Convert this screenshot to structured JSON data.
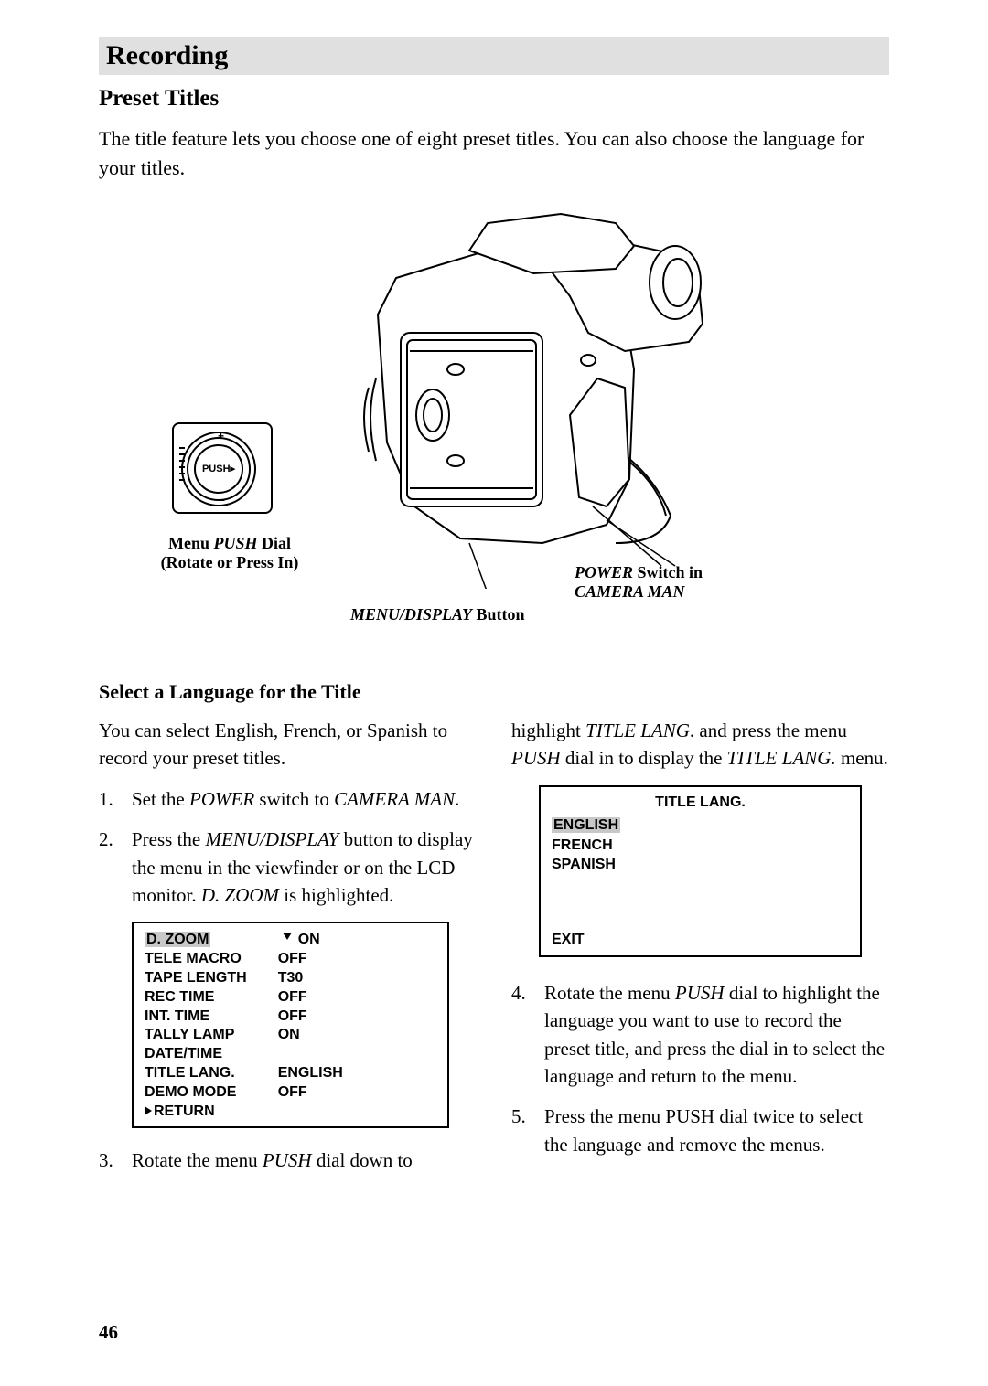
{
  "section_header": "Recording",
  "subtitle": "Preset Titles",
  "intro": "The title feature lets you choose one of eight preset titles.  You can also choose the language for your titles.",
  "diagram": {
    "push_label": "PUSH▸",
    "plus": "+",
    "minus": "–",
    "menu_dial_label_1": "Menu ",
    "menu_dial_push": "PUSH",
    "menu_dial_label_2": " Dial",
    "menu_dial_label_3": "(Rotate or Press In)",
    "power_prefix": "POWER",
    "power_mid": " Switch in",
    "power_suffix": "CAMERA MAN",
    "menu_display_prefix": "MENU/DISPLAY",
    "menu_display_suffix": " Button"
  },
  "sub_heading": "Select a Language for the Title",
  "left": {
    "p1": "You can select English, French, or Spanish to record your preset titles.",
    "li1_a": "Set the ",
    "li1_power": "POWER",
    "li1_b": " switch to ",
    "li1_cam": "CAMERA MAN",
    "li1_c": ".",
    "li2_a": "Press the ",
    "li2_md": "MENU/DISPLAY",
    "li2_b": " button to display the menu in the viewfinder or on the LCD monitor.  ",
    "li2_dz": "D. ZOOM",
    "li2_c": " is highlighted.",
    "li3_a": "Rotate the menu ",
    "li3_push": "PUSH",
    "li3_b": " dial down to"
  },
  "menu1": {
    "rows": [
      {
        "label": "D. ZOOM",
        "value": "ON",
        "labelHighlight": true,
        "cursor": true
      },
      {
        "label": "TELE MACRO",
        "value": "OFF"
      },
      {
        "label": "TAPE LENGTH",
        "value": "T30"
      },
      {
        "label": "REC TIME",
        "value": "OFF"
      },
      {
        "label": "INT. TIME",
        "value": "OFF"
      },
      {
        "label": "TALLY LAMP",
        "value": "ON"
      },
      {
        "label": "DATE/TIME",
        "value": ""
      },
      {
        "label": "TITLE LANG.",
        "value": "ENGLISH"
      },
      {
        "label": "DEMO MODE",
        "value": "OFF"
      }
    ],
    "return": "RETURN"
  },
  "right": {
    "p1_a": "highlight ",
    "p1_tl": "TITLE LANG",
    "p1_b": ". and press the menu ",
    "p1_push": "PUSH",
    "p1_c": " dial in to display the ",
    "p1_tlm": "TITLE LANG.",
    "p1_d": " menu.",
    "li4_a": "Rotate the menu ",
    "li4_push": "PUSH",
    "li4_b": " dial to highlight the language you want to use to record the preset title, and press the dial in to select the language and return to the menu.",
    "li5": "Press the menu PUSH dial twice to select the language and remove the menus."
  },
  "menu2": {
    "title": "TITLE LANG.",
    "items": [
      "ENGLISH",
      "FRENCH",
      "SPANISH"
    ],
    "highlightIndex": 0,
    "exit": "EXIT"
  },
  "page_number": "46"
}
